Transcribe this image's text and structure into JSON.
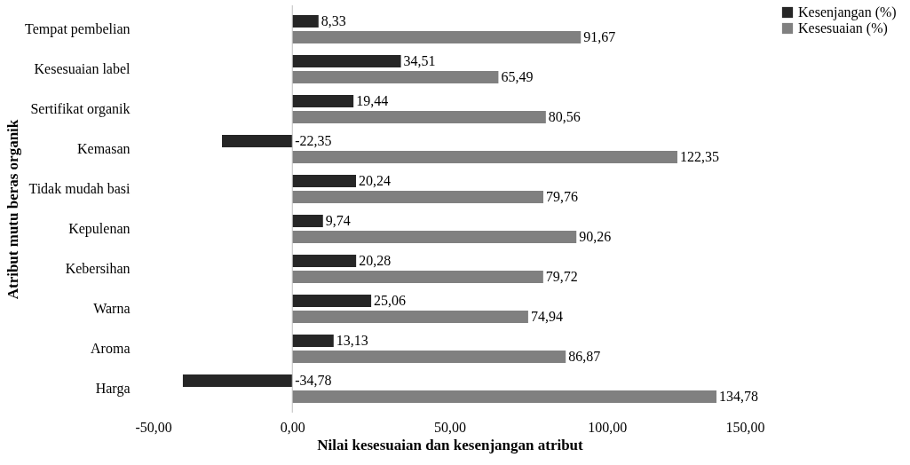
{
  "chart_data": {
    "type": "bar",
    "orientation": "horizontal",
    "ylabel": "Atribut mutu beras organik",
    "xlabel": "Nilai kesesuaian dan kesenjangan atribut",
    "categories": [
      "Tempat pembelian",
      "Kesesuaian label",
      "Sertifikat organik",
      "Kemasan",
      "Tidak mudah basi",
      "Kepulenan",
      "Kebersihan",
      "Warna",
      "Aroma",
      "Harga"
    ],
    "series": [
      {
        "name": "Kesenjangan (%)",
        "color": "#262626",
        "values": [
          8.33,
          34.51,
          19.44,
          -22.35,
          20.24,
          9.74,
          20.28,
          25.06,
          13.13,
          -34.78
        ],
        "value_labels": [
          "8,33",
          "34,51",
          "19,44",
          "-22,35",
          "20,24",
          "9,74",
          "20,28",
          "25,06",
          "13,13",
          "-34,78"
        ]
      },
      {
        "name": "Kesesuaian (%)",
        "color": "#808080",
        "values": [
          91.67,
          65.49,
          80.56,
          122.35,
          79.76,
          90.26,
          79.72,
          74.94,
          86.87,
          134.78
        ],
        "value_labels": [
          "91,67",
          "65,49",
          "80,56",
          "122,35",
          "79,76",
          "90,26",
          "79,72",
          "74,94",
          "86,87",
          "134,78"
        ]
      }
    ],
    "xlim": [
      -50,
      150
    ],
    "xticks": [
      {
        "value": -50,
        "label": "-50,00"
      },
      {
        "value": 0,
        "label": "0,00"
      },
      {
        "value": 50,
        "label": "50,00"
      },
      {
        "value": 100,
        "label": "100,00"
      },
      {
        "value": 150,
        "label": "150,00"
      }
    ],
    "ref_lines": [
      {
        "axis": "x",
        "value": 0,
        "color": "#bfbfbf"
      }
    ],
    "legend": "right",
    "grid": false
  }
}
